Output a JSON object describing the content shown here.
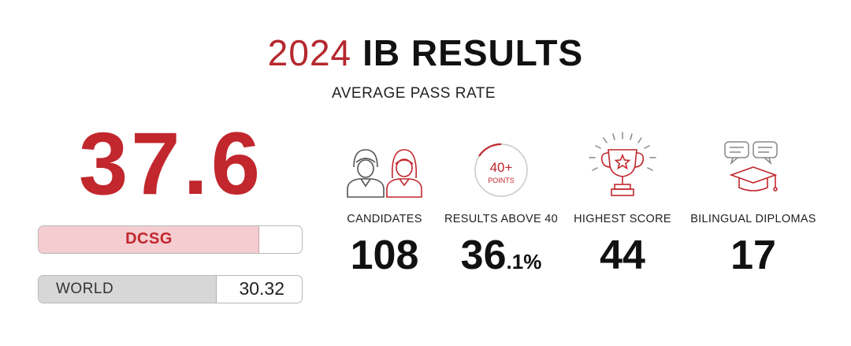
{
  "header": {
    "year": "2024",
    "title": "IB RESULTS",
    "subtitle": "AVERAGE PASS RATE"
  },
  "average": {
    "score": "37.6",
    "school_label": "DCSG",
    "school_score": 37.6,
    "world_label": "WORLD",
    "world_score": "30.32",
    "scale_max": 45
  },
  "stats": [
    {
      "label": "CANDIDATES",
      "value": "108",
      "icon": "candidates-icon"
    },
    {
      "label": "RESULTS ABOVE 40",
      "value_main": "36",
      "value_small": ".1%",
      "icon": "points-badge-icon",
      "badge_top": "40+",
      "badge_bottom": "POINTS"
    },
    {
      "label": "HIGHEST SCORE",
      "value": "44",
      "icon": "trophy-icon"
    },
    {
      "label": "BILINGUAL DIPLOMAS",
      "value": "17",
      "icon": "bilingual-diploma-icon"
    }
  ],
  "colors": {
    "accent": "#c1272d",
    "school_bar": "#f4cdd1",
    "world_bar": "#d7d7d7"
  }
}
